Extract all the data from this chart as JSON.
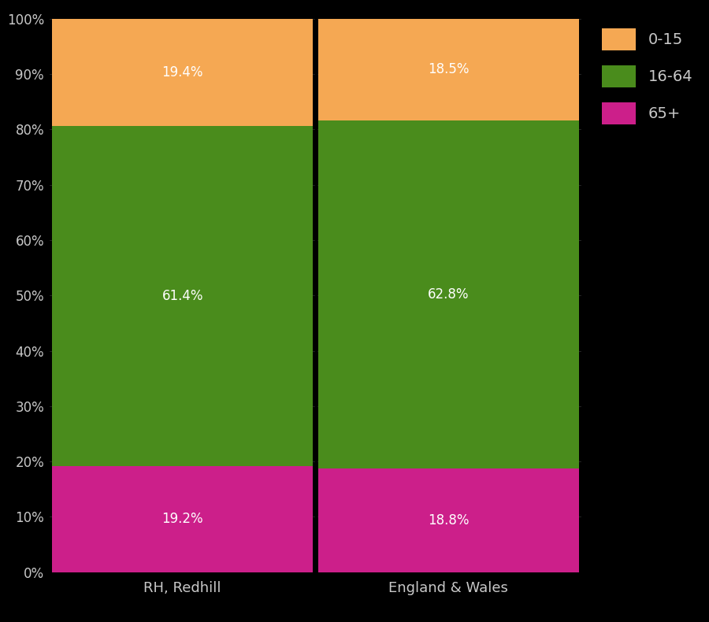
{
  "categories": [
    "RH, Redhill",
    "England & Wales"
  ],
  "age_groups": [
    "65+",
    "16-64",
    "0-15"
  ],
  "values": {
    "RH, Redhill": [
      19.2,
      61.4,
      19.4
    ],
    "England & Wales": [
      18.8,
      62.8,
      18.5
    ]
  },
  "colors": {
    "65+": "#cc1f8a",
    "16-64": "#4a8c1c",
    "0-15": "#f5a853"
  },
  "label_colors": {
    "65+": "white",
    "16-64": "white",
    "0-15": "white"
  },
  "background_color": "#000000",
  "text_color": "#c8c8c8",
  "yticks": [
    0,
    10,
    20,
    30,
    40,
    50,
    60,
    70,
    80,
    90,
    100
  ],
  "ytick_labels": [
    "0%",
    "10%",
    "20%",
    "30%",
    "40%",
    "50%",
    "60%",
    "70%",
    "80%",
    "90%",
    "100%"
  ],
  "legend_labels": [
    "0-15",
    "16-64",
    "65+"
  ],
  "legend_colors": [
    "#f5a853",
    "#4a8c1c",
    "#cc1f8a"
  ],
  "label_fontsize": 12,
  "tick_fontsize": 12,
  "axis_label_fontsize": 13,
  "x_positions": [
    0,
    1
  ],
  "bar_width": 0.98,
  "xlim": [
    -0.5,
    1.5
  ],
  "ylim": [
    0,
    100
  ]
}
